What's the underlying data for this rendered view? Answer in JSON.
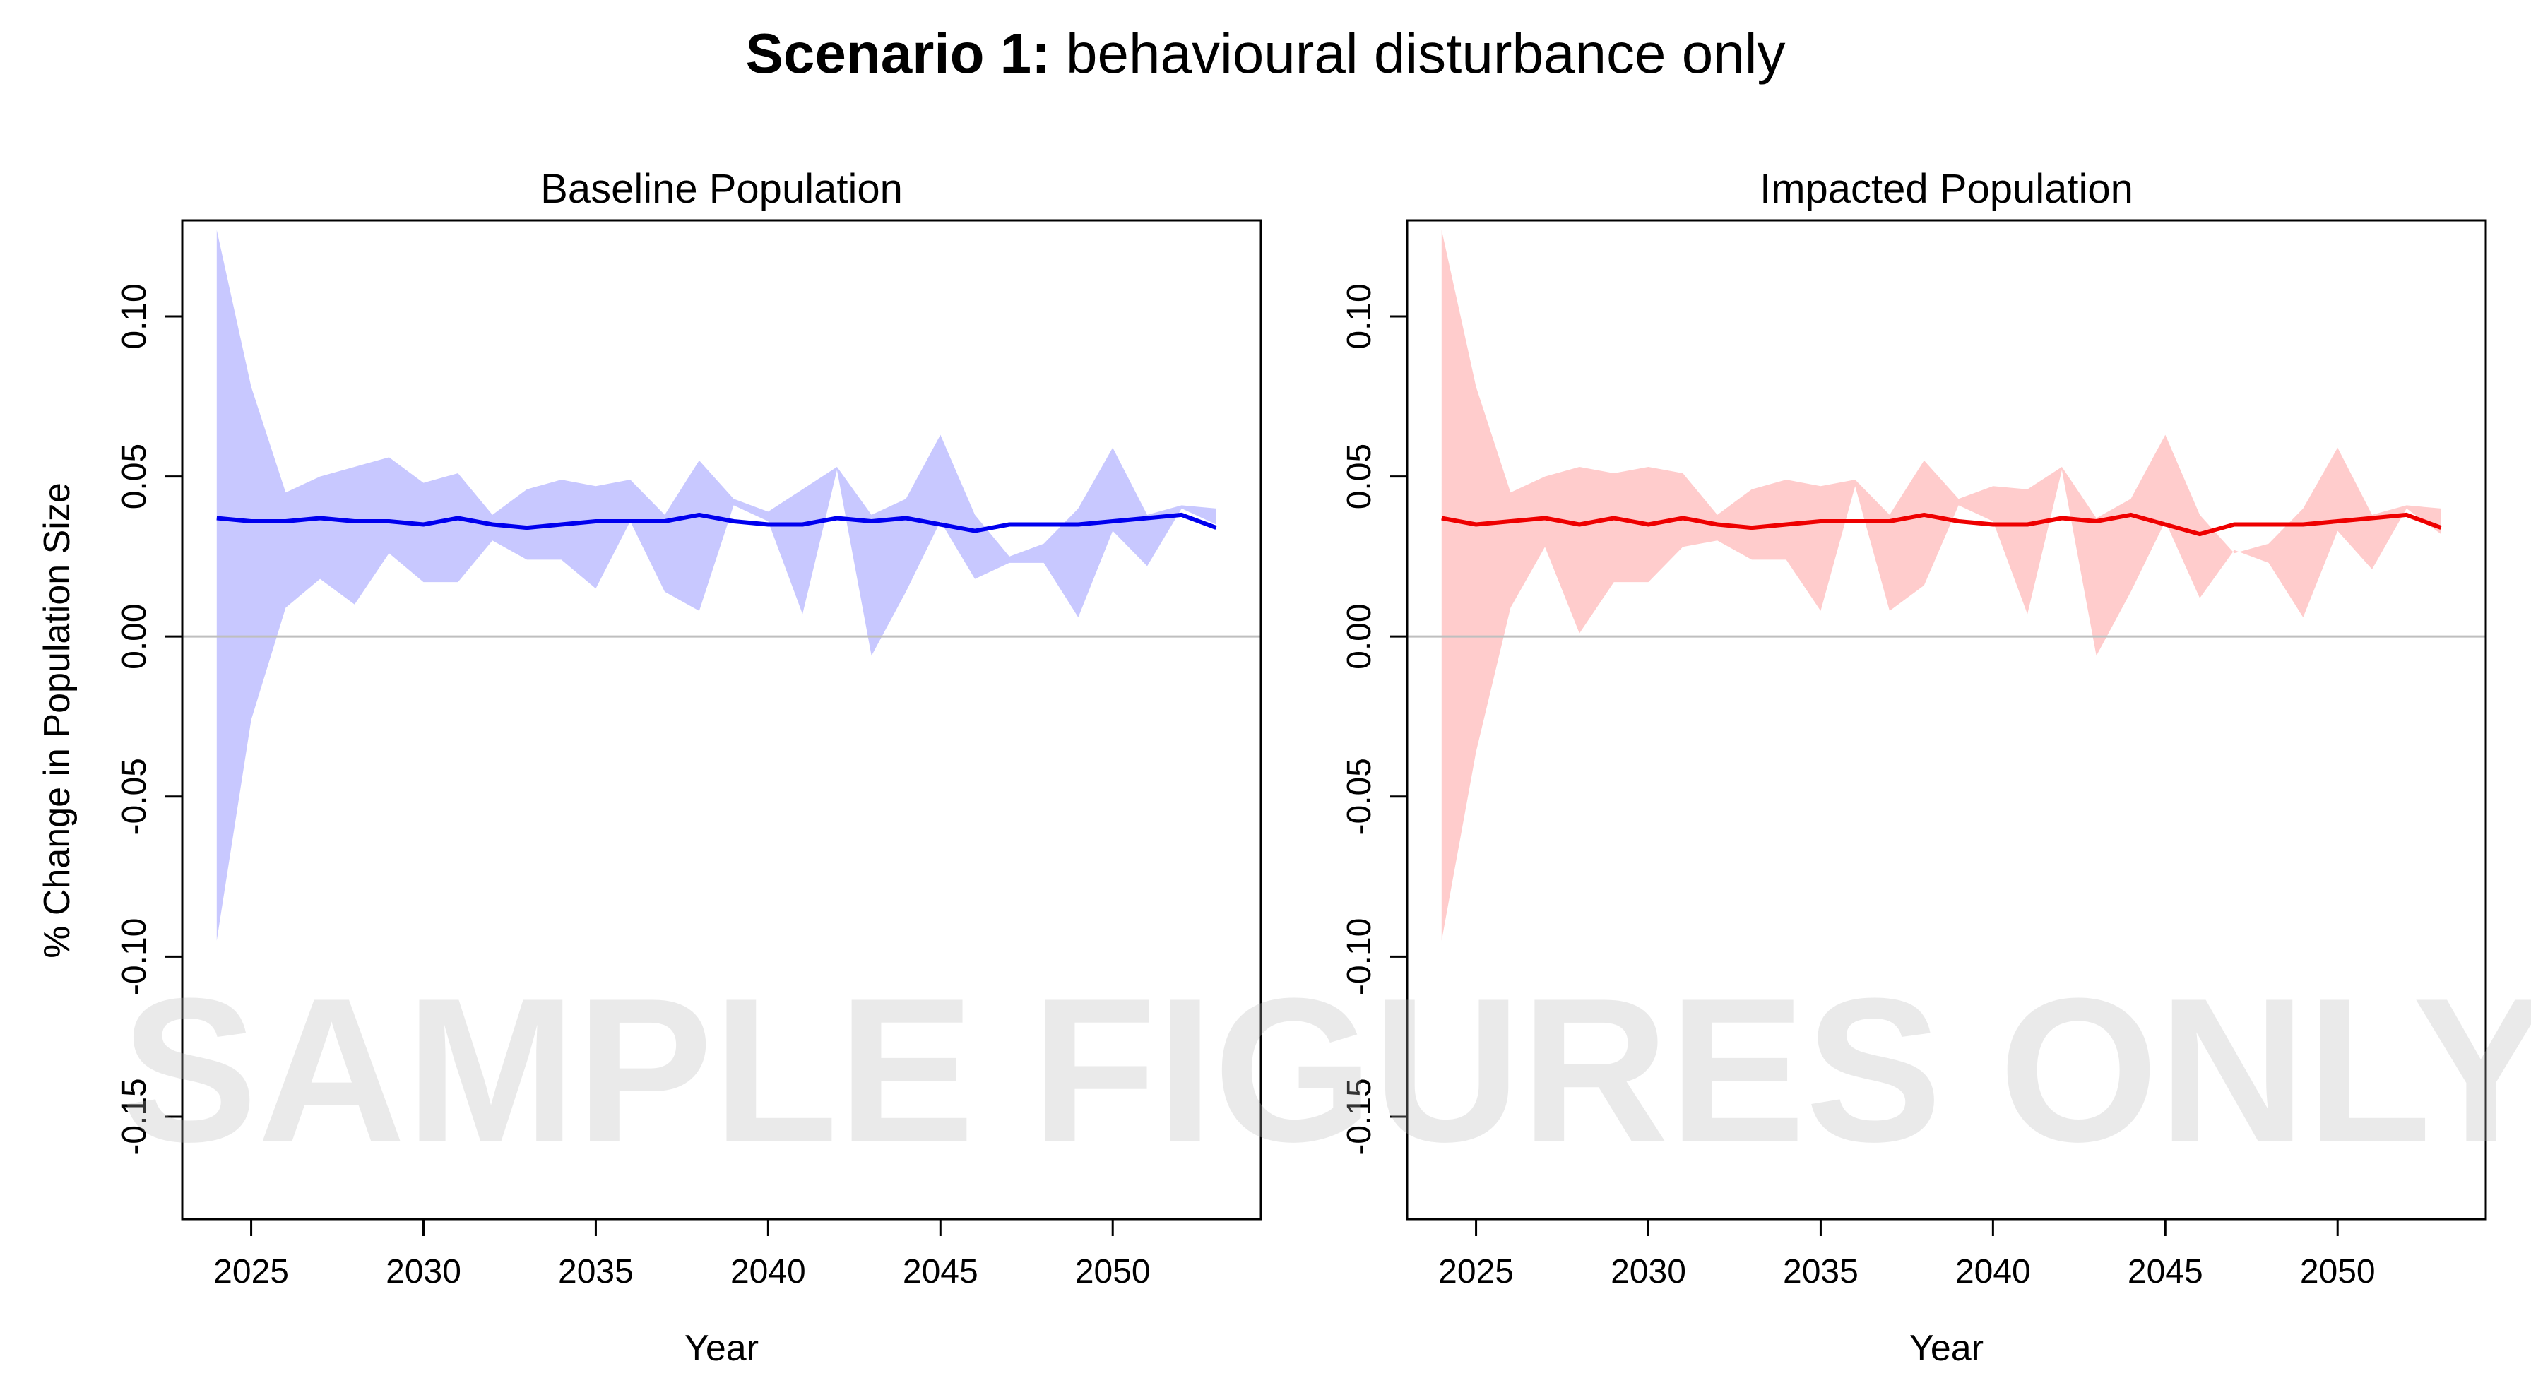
{
  "figure": {
    "title_bold": "Scenario 1:",
    "title_rest": " behavioural disturbance only",
    "watermark": "SAMPLE FIGURES ONLY"
  },
  "chart_data": [
    {
      "type": "line",
      "title": "Baseline Population",
      "xlabel": "Year",
      "ylabel": "% Change in Population Size",
      "xlim": [
        2023,
        2054.3
      ],
      "ylim": [
        -0.182,
        0.13
      ],
      "xticks": [
        "2025",
        "2030",
        "2035",
        "2040",
        "2045",
        "2050"
      ],
      "yticks": [
        "-0.15",
        "-0.10",
        "-0.05",
        "0.00",
        "0.05",
        "0.10"
      ],
      "reference_line_y": 0,
      "colors": {
        "line": "#0000ee",
        "band": "#c8c8ff"
      },
      "x": [
        2024,
        2025,
        2026,
        2027,
        2028,
        2029,
        2030,
        2031,
        2032,
        2033,
        2034,
        2035,
        2036,
        2037,
        2038,
        2039,
        2040,
        2041,
        2042,
        2043,
        2044,
        2045,
        2046,
        2047,
        2048,
        2049,
        2050,
        2051,
        2052,
        2053
      ],
      "series": [
        {
          "name": "",
          "role": "mean",
          "values": [
            0.037,
            0.036,
            0.036,
            0.037,
            0.036,
            0.036,
            0.035,
            0.037,
            0.035,
            0.034,
            0.035,
            0.036,
            0.036,
            0.036,
            0.038,
            0.036,
            0.035,
            0.035,
            0.037,
            0.036,
            0.037,
            0.035,
            0.033,
            0.035,
            0.035,
            0.035,
            0.036,
            0.037,
            0.038,
            0.034
          ]
        },
        {
          "name": "",
          "role": "upper",
          "values": [
            0.127,
            0.078,
            0.045,
            0.05,
            0.053,
            0.056,
            0.048,
            0.051,
            0.038,
            0.046,
            0.049,
            0.047,
            0.049,
            0.038,
            0.055,
            0.043,
            0.039,
            0.046,
            0.053,
            0.038,
            0.043,
            0.063,
            0.038,
            0.025,
            0.029,
            0.04,
            0.059,
            0.038,
            0.041,
            0.04
          ]
        },
        {
          "name": "",
          "role": "lower",
          "values": [
            -0.095,
            -0.026,
            0.009,
            0.018,
            0.01,
            0.026,
            0.017,
            0.017,
            0.03,
            0.024,
            0.024,
            0.015,
            0.036,
            0.014,
            0.008,
            0.041,
            0.036,
            0.007,
            0.052,
            -0.006,
            0.014,
            0.036,
            0.018,
            0.023,
            0.023,
            0.006,
            0.033,
            0.022,
            0.04,
            0.035
          ]
        }
      ]
    },
    {
      "type": "line",
      "title": "Impacted Population",
      "xlabel": "Year",
      "ylabel": "",
      "xlim": [
        2023,
        2054.3
      ],
      "ylim": [
        -0.182,
        0.13
      ],
      "xticks": [
        "2025",
        "2030",
        "2035",
        "2040",
        "2045",
        "2050"
      ],
      "yticks": [
        "-0.15",
        "-0.10",
        "-0.05",
        "0.00",
        "0.05",
        "0.10"
      ],
      "reference_line_y": 0,
      "colors": {
        "line": "#ee0000",
        "band": "#ffcccc"
      },
      "x": [
        2024,
        2025,
        2026,
        2027,
        2028,
        2029,
        2030,
        2031,
        2032,
        2033,
        2034,
        2035,
        2036,
        2037,
        2038,
        2039,
        2040,
        2041,
        2042,
        2043,
        2044,
        2045,
        2046,
        2047,
        2048,
        2049,
        2050,
        2051,
        2052,
        2053
      ],
      "series": [
        {
          "name": "",
          "role": "mean",
          "values": [
            0.037,
            0.035,
            0.036,
            0.037,
            0.035,
            0.037,
            0.035,
            0.037,
            0.035,
            0.034,
            0.035,
            0.036,
            0.036,
            0.036,
            0.038,
            0.036,
            0.035,
            0.035,
            0.037,
            0.036,
            0.038,
            0.035,
            0.032,
            0.035,
            0.035,
            0.035,
            0.036,
            0.037,
            0.038,
            0.034
          ]
        },
        {
          "name": "",
          "role": "upper",
          "values": [
            0.127,
            0.078,
            0.045,
            0.05,
            0.053,
            0.051,
            0.053,
            0.051,
            0.038,
            0.046,
            0.049,
            0.047,
            0.049,
            0.038,
            0.055,
            0.043,
            0.047,
            0.046,
            0.053,
            0.037,
            0.043,
            0.063,
            0.038,
            0.026,
            0.029,
            0.04,
            0.059,
            0.038,
            0.041,
            0.04
          ]
        },
        {
          "name": "",
          "role": "lower",
          "values": [
            -0.095,
            -0.036,
            0.009,
            0.028,
            0.001,
            0.017,
            0.017,
            0.028,
            0.03,
            0.024,
            0.024,
            0.008,
            0.047,
            0.008,
            0.016,
            0.041,
            0.036,
            0.007,
            0.052,
            -0.006,
            0.014,
            0.036,
            0.012,
            0.027,
            0.023,
            0.006,
            0.033,
            0.021,
            0.04,
            0.032
          ]
        }
      ]
    }
  ]
}
